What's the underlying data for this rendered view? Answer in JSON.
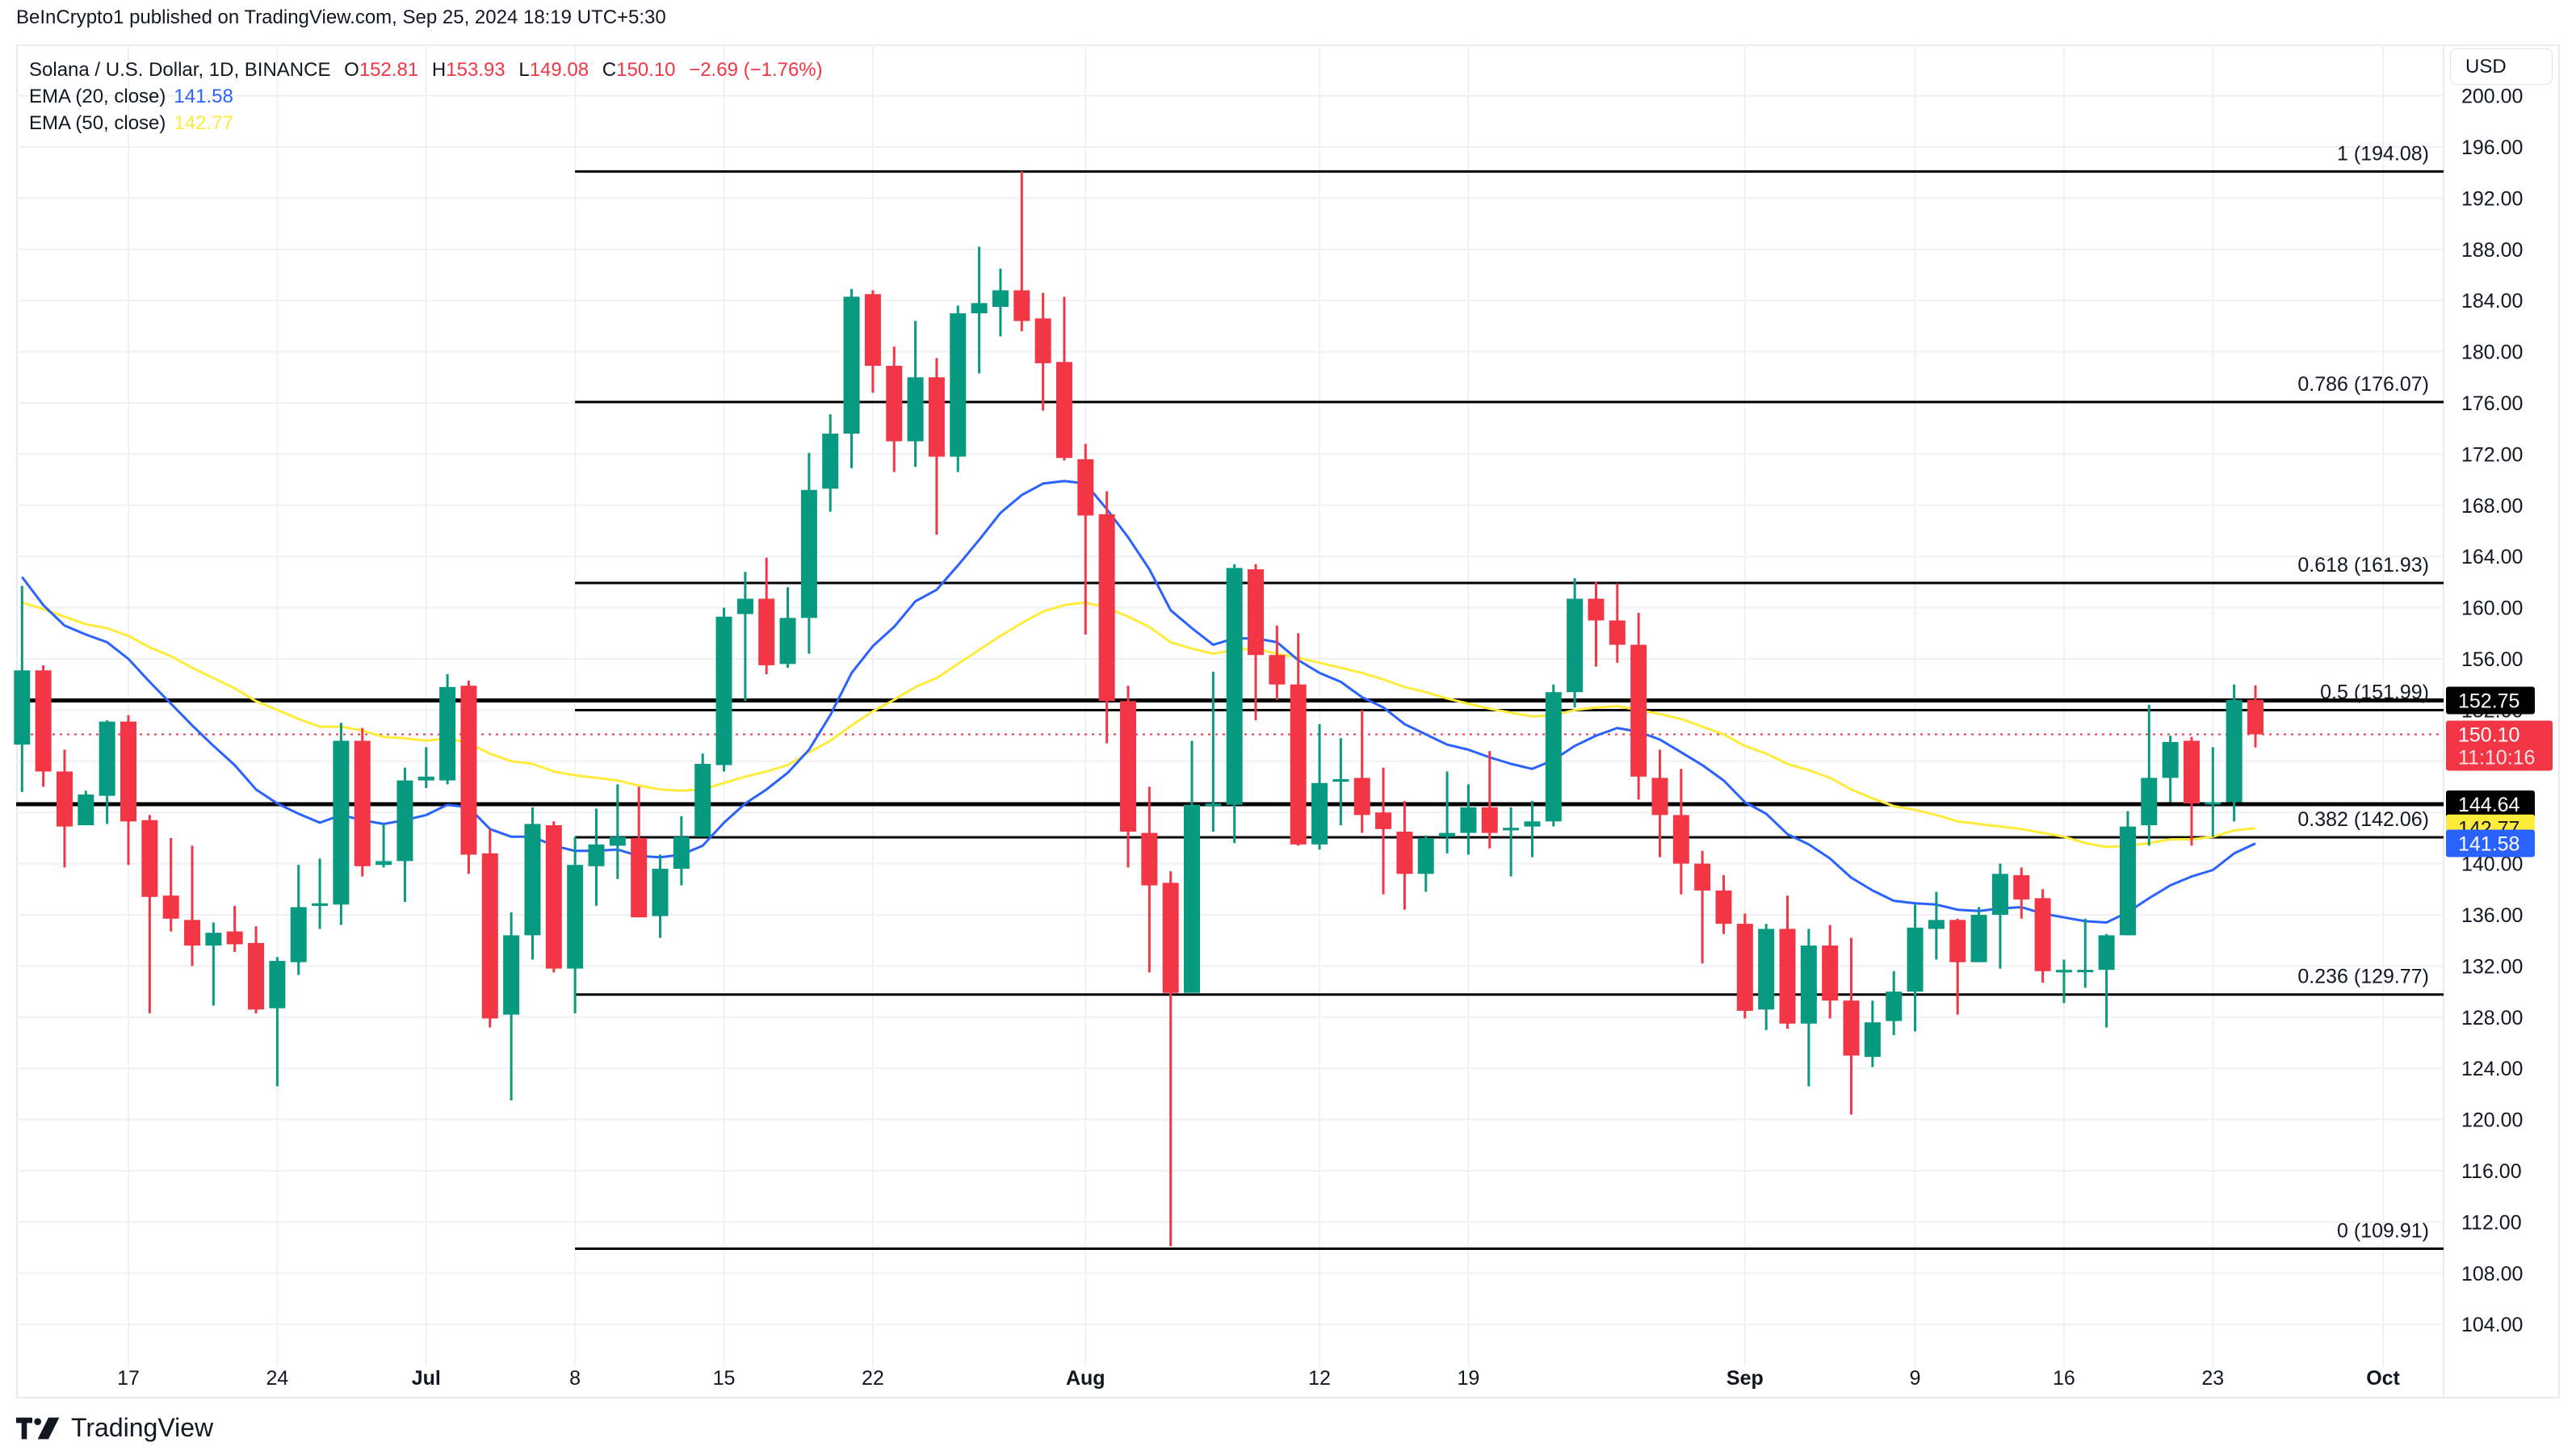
{
  "header": {
    "published": "BeInCrypto1 published on TradingView.com, Sep 25, 2024 18:19 UTC+5:30"
  },
  "legend": {
    "symbol": "Solana / U.S. Dollar, 1D, BINANCE",
    "open_label": "O",
    "open": "152.81",
    "high_label": "H",
    "high": "153.93",
    "low_label": "L",
    "low": "149.08",
    "close_label": "C",
    "close": "150.10",
    "change": "−2.69 (−1.76%)",
    "ema20_label": "EMA (20, close)",
    "ema20_value": "141.58",
    "ema50_label": "EMA (50, close)",
    "ema50_value": "142.77"
  },
  "axis": {
    "currency_button": "USD",
    "price_ticks": [
      "200.00",
      "196.00",
      "192.00",
      "188.00",
      "184.00",
      "180.00",
      "176.00",
      "172.00",
      "168.00",
      "164.00",
      "160.00",
      "156.00",
      "152.00",
      "148.00",
      "144.00",
      "140.00",
      "136.00",
      "132.00",
      "128.00",
      "124.00",
      "120.00",
      "116.00",
      "112.00",
      "108.00",
      "104.00"
    ],
    "price_tick_values": [
      200,
      196,
      192,
      188,
      184,
      180,
      176,
      172,
      168,
      164,
      160,
      156,
      152,
      148,
      144,
      140,
      136,
      132,
      128,
      124,
      120,
      116,
      112,
      108,
      104
    ],
    "time_ticks": [
      {
        "label": "17",
        "day": 0,
        "bold": false
      },
      {
        "label": "24",
        "day": 7,
        "bold": false
      },
      {
        "label": "Jul",
        "day": 14,
        "bold": true
      },
      {
        "label": "8",
        "day": 21,
        "bold": false
      },
      {
        "label": "15",
        "day": 28,
        "bold": false
      },
      {
        "label": "22",
        "day": 35,
        "bold": false
      },
      {
        "label": "Aug",
        "day": 45,
        "bold": true
      },
      {
        "label": "12",
        "day": 56,
        "bold": false
      },
      {
        "label": "19",
        "day": 63,
        "bold": false
      },
      {
        "label": "Sep",
        "day": 76,
        "bold": true
      },
      {
        "label": "9",
        "day": 84,
        "bold": false
      },
      {
        "label": "16",
        "day": 91,
        "bold": false
      },
      {
        "label": "23",
        "day": 98,
        "bold": false
      },
      {
        "label": "Oct",
        "day": 106,
        "bold": true
      }
    ],
    "price_badges": [
      {
        "value": "152.75",
        "price": 152.75,
        "bg": "#000000",
        "fg": "#ffffff"
      },
      {
        "value": "150.10",
        "sub": "11:10:16",
        "price": 150.1,
        "bg": "#F23645",
        "fg": "#ffffff"
      },
      {
        "value": "144.64",
        "price": 144.64,
        "bg": "#000000",
        "fg": "#ffffff"
      },
      {
        "value": "142.77",
        "price": 142.77,
        "bg": "#FFEB3B",
        "fg": "#131722"
      },
      {
        "value": "141.58",
        "price": 141.58,
        "bg": "#2962FF",
        "fg": "#ffffff"
      }
    ]
  },
  "colors": {
    "up": "#089981",
    "down": "#F23645",
    "ema20": "#2962FF",
    "ema50": "#FFEB3B",
    "grid": "#f0f1f4",
    "fib_line": "#000000",
    "last_price_line": "#F23645"
  },
  "horizontal_lines": [
    {
      "name": "resistance-line",
      "price": 152.75,
      "width": 5
    },
    {
      "name": "support-line",
      "price": 144.64,
      "width": 5
    }
  ],
  "fib_levels": [
    {
      "label": "1 (194.08)",
      "ratio": 1,
      "price": 194.08
    },
    {
      "label": "0.786 (176.07)",
      "ratio": 0.786,
      "price": 176.07
    },
    {
      "label": "0.618 (161.93)",
      "ratio": 0.618,
      "price": 161.93
    },
    {
      "label": "0.5 (151.99)",
      "ratio": 0.5,
      "price": 151.99
    },
    {
      "label": "0.382 (142.06)",
      "ratio": 0.382,
      "price": 142.06
    },
    {
      "label": "0.236 (129.77)",
      "ratio": 0.236,
      "price": 129.77
    },
    {
      "label": "0 (109.91)",
      "ratio": 0,
      "price": 109.91
    }
  ],
  "fib_start_day": 21,
  "footer": {
    "brand": "TradingView"
  },
  "chart_data": {
    "type": "candlestick",
    "title": "Solana / U.S. Dollar, 1D, BINANCE",
    "xlabel": "",
    "ylabel": "USD",
    "ylim": [
      102,
      204
    ],
    "grid": true,
    "first_day_offset": -5,
    "dates": [
      "Jun 12",
      "Jun 13",
      "Jun 14",
      "Jun 15",
      "Jun 16",
      "Jun 17",
      "Jun 18",
      "Jun 19",
      "Jun 20",
      "Jun 21",
      "Jun 22",
      "Jun 23",
      "Jun 24",
      "Jun 25",
      "Jun 26",
      "Jun 27",
      "Jun 28",
      "Jun 29",
      "Jun 30",
      "Jul 1",
      "Jul 2",
      "Jul 3",
      "Jul 4",
      "Jul 5",
      "Jul 6",
      "Jul 7",
      "Jul 8",
      "Jul 9",
      "Jul 10",
      "Jul 11",
      "Jul 12",
      "Jul 13",
      "Jul 14",
      "Jul 15",
      "Jul 16",
      "Jul 17",
      "Jul 18",
      "Jul 19",
      "Jul 20",
      "Jul 21",
      "Jul 22",
      "Jul 23",
      "Jul 24",
      "Jul 25",
      "Jul 26",
      "Jul 27",
      "Jul 28",
      "Jul 29",
      "Jul 30",
      "Jul 31",
      "Aug 1",
      "Aug 2",
      "Aug 3",
      "Aug 4",
      "Aug 5",
      "Aug 6",
      "Aug 7",
      "Aug 8",
      "Aug 9",
      "Aug 10",
      "Aug 11",
      "Aug 12",
      "Aug 13",
      "Aug 14",
      "Aug 15",
      "Aug 16",
      "Aug 17",
      "Aug 18",
      "Aug 19",
      "Aug 20",
      "Aug 21",
      "Aug 22",
      "Aug 23",
      "Aug 24",
      "Aug 25",
      "Aug 26",
      "Aug 27",
      "Aug 28",
      "Aug 29",
      "Aug 30",
      "Aug 31",
      "Sep 1",
      "Sep 2",
      "Sep 3",
      "Sep 4",
      "Sep 5",
      "Sep 6",
      "Sep 7",
      "Sep 8",
      "Sep 9",
      "Sep 10",
      "Sep 11",
      "Sep 12",
      "Sep 13",
      "Sep 14",
      "Sep 15",
      "Sep 16",
      "Sep 17",
      "Sep 18",
      "Sep 19",
      "Sep 20",
      "Sep 21",
      "Sep 22",
      "Sep 23",
      "Sep 24",
      "Sep 25"
    ],
    "ohlc": [
      [
        149.3,
        161.7,
        145.6,
        155.1
      ],
      [
        155.1,
        155.5,
        146.0,
        147.2
      ],
      [
        147.2,
        148.9,
        139.7,
        142.9
      ],
      [
        143.0,
        145.7,
        143.0,
        145.4
      ],
      [
        145.3,
        151.2,
        143.1,
        151.1
      ],
      [
        151.1,
        151.6,
        139.9,
        143.3
      ],
      [
        143.4,
        143.8,
        128.3,
        137.4
      ],
      [
        137.5,
        142.0,
        134.7,
        135.7
      ],
      [
        135.6,
        141.4,
        132.0,
        133.6
      ],
      [
        133.6,
        135.4,
        128.9,
        134.6
      ],
      [
        134.7,
        136.7,
        133.1,
        133.7
      ],
      [
        133.8,
        135.1,
        128.3,
        128.6
      ],
      [
        128.7,
        132.7,
        122.6,
        132.4
      ],
      [
        132.3,
        139.9,
        131.3,
        136.6
      ],
      [
        136.7,
        140.4,
        134.9,
        136.9
      ],
      [
        136.8,
        151.0,
        135.2,
        149.6
      ],
      [
        149.6,
        150.6,
        139.0,
        139.8
      ],
      [
        139.9,
        143.1,
        139.7,
        140.2
      ],
      [
        140.2,
        147.5,
        137.0,
        146.5
      ],
      [
        146.5,
        149.1,
        145.9,
        146.8
      ],
      [
        146.5,
        154.8,
        146.2,
        153.8
      ],
      [
        153.9,
        154.3,
        139.2,
        140.7
      ],
      [
        140.8,
        142.7,
        127.2,
        127.9
      ],
      [
        128.2,
        136.2,
        121.5,
        134.4
      ],
      [
        134.4,
        144.4,
        132.5,
        143.1
      ],
      [
        143.0,
        143.3,
        131.5,
        131.8
      ],
      [
        131.8,
        142.1,
        128.3,
        139.9
      ],
      [
        139.8,
        144.3,
        136.7,
        141.5
      ],
      [
        141.4,
        146.2,
        138.8,
        142.1
      ],
      [
        142.0,
        146.0,
        135.8,
        135.8
      ],
      [
        135.9,
        140.7,
        134.2,
        139.6
      ],
      [
        139.6,
        143.7,
        138.3,
        142.1
      ],
      [
        142.1,
        148.6,
        142.1,
        147.8
      ],
      [
        147.7,
        160.0,
        147.2,
        159.3
      ],
      [
        159.5,
        162.8,
        152.7,
        160.7
      ],
      [
        160.7,
        163.9,
        154.8,
        155.5
      ],
      [
        155.6,
        161.6,
        155.3,
        159.2
      ],
      [
        159.2,
        172.1,
        156.4,
        169.2
      ],
      [
        169.3,
        175.1,
        167.5,
        173.6
      ],
      [
        173.6,
        184.9,
        170.9,
        184.3
      ],
      [
        184.5,
        184.8,
        176.8,
        178.9
      ],
      [
        178.9,
        180.4,
        170.6,
        173.0
      ],
      [
        173.0,
        182.4,
        171.0,
        178.0
      ],
      [
        178.0,
        179.5,
        165.7,
        171.8
      ],
      [
        171.8,
        183.6,
        170.6,
        183.0
      ],
      [
        183.0,
        188.2,
        178.3,
        183.8
      ],
      [
        183.5,
        186.5,
        181.2,
        184.8
      ],
      [
        184.8,
        194.1,
        181.6,
        182.4
      ],
      [
        182.6,
        184.6,
        175.4,
        179.1
      ],
      [
        179.2,
        184.3,
        171.5,
        171.7
      ],
      [
        171.6,
        172.8,
        157.9,
        167.2
      ],
      [
        167.3,
        169.1,
        149.4,
        152.7
      ],
      [
        152.7,
        153.9,
        139.7,
        142.5
      ],
      [
        142.4,
        146.0,
        131.5,
        138.3
      ],
      [
        138.5,
        139.4,
        110.1,
        129.9
      ],
      [
        129.9,
        149.6,
        129.9,
        144.6
      ],
      [
        144.6,
        155.0,
        142.5,
        144.7
      ],
      [
        144.6,
        163.4,
        141.6,
        163.1
      ],
      [
        163.0,
        163.4,
        151.2,
        156.3
      ],
      [
        156.3,
        158.6,
        152.8,
        154.0
      ],
      [
        154.0,
        158.0,
        141.4,
        141.5
      ],
      [
        141.5,
        150.9,
        141.1,
        146.3
      ],
      [
        146.4,
        149.8,
        143.0,
        146.6
      ],
      [
        146.7,
        152.0,
        142.4,
        143.8
      ],
      [
        144.0,
        147.5,
        137.6,
        142.7
      ],
      [
        142.5,
        144.9,
        136.4,
        139.2
      ],
      [
        139.2,
        142.2,
        137.8,
        142.0
      ],
      [
        142.1,
        147.2,
        140.8,
        142.4
      ],
      [
        142.4,
        146.2,
        140.7,
        144.4
      ],
      [
        144.4,
        148.8,
        141.2,
        142.4
      ],
      [
        142.6,
        144.4,
        139.0,
        142.8
      ],
      [
        142.9,
        144.9,
        140.5,
        143.3
      ],
      [
        143.3,
        154.0,
        142.9,
        153.4
      ],
      [
        153.4,
        162.3,
        152.2,
        160.7
      ],
      [
        160.7,
        162.0,
        155.4,
        159.0
      ],
      [
        159.0,
        161.9,
        155.7,
        157.1
      ],
      [
        157.1,
        159.6,
        145.0,
        146.8
      ],
      [
        146.7,
        148.9,
        140.5,
        143.8
      ],
      [
        143.8,
        147.4,
        137.6,
        140.0
      ],
      [
        140.0,
        141.0,
        132.2,
        137.9
      ],
      [
        137.9,
        139.1,
        134.5,
        135.3
      ],
      [
        135.3,
        136.1,
        127.9,
        128.5
      ],
      [
        128.6,
        135.3,
        127.0,
        134.9
      ],
      [
        134.9,
        137.5,
        127.1,
        127.5
      ],
      [
        127.5,
        134.9,
        122.6,
        133.6
      ],
      [
        133.6,
        135.2,
        127.9,
        129.3
      ],
      [
        129.3,
        134.2,
        120.4,
        125.0
      ],
      [
        124.9,
        129.3,
        124.1,
        127.6
      ],
      [
        127.7,
        131.6,
        126.6,
        130.0
      ],
      [
        130.0,
        136.8,
        126.9,
        135.0
      ],
      [
        134.9,
        137.8,
        132.5,
        135.6
      ],
      [
        135.6,
        135.7,
        128.2,
        132.3
      ],
      [
        132.3,
        136.6,
        132.3,
        136.0
      ],
      [
        136.0,
        140.0,
        131.8,
        139.2
      ],
      [
        139.1,
        139.7,
        135.7,
        137.2
      ],
      [
        137.3,
        138.0,
        130.7,
        131.6
      ],
      [
        131.5,
        132.5,
        129.1,
        131.7
      ],
      [
        131.6,
        135.7,
        130.3,
        131.7
      ],
      [
        131.7,
        134.5,
        127.2,
        134.4
      ],
      [
        134.4,
        144.1,
        134.4,
        142.9
      ],
      [
        143.0,
        152.4,
        141.4,
        146.7
      ],
      [
        146.7,
        150.0,
        144.8,
        149.5
      ],
      [
        149.6,
        149.9,
        141.4,
        144.7
      ],
      [
        144.7,
        149.1,
        142.1,
        144.8
      ],
      [
        144.8,
        154.0,
        143.3,
        152.8
      ],
      [
        152.81,
        153.93,
        149.08,
        150.1
      ]
    ],
    "series": [
      {
        "name": "EMA (20, close)",
        "color": "#2962FF",
        "values": [
          162.4,
          160.2,
          158.6,
          157.9,
          157.3,
          156.0,
          154.2,
          152.5,
          150.8,
          149.2,
          147.7,
          145.8,
          144.7,
          143.9,
          143.2,
          143.8,
          143.4,
          143.1,
          143.4,
          143.8,
          144.6,
          144.4,
          142.7,
          142.1,
          142.1,
          141.4,
          141.0,
          141.0,
          141.1,
          140.6,
          140.5,
          140.7,
          141.4,
          143.2,
          144.7,
          145.8,
          147.1,
          148.9,
          151.6,
          154.9,
          157.0,
          158.5,
          160.5,
          161.4,
          163.3,
          165.3,
          167.4,
          168.8,
          169.7,
          169.9,
          169.7,
          167.7,
          165.5,
          163.0,
          159.8,
          158.4,
          157.1,
          157.6,
          157.6,
          157.3,
          155.9,
          154.9,
          154.2,
          153.0,
          152.2,
          150.9,
          150.1,
          149.3,
          148.9,
          148.3,
          147.8,
          147.4,
          148.1,
          149.2,
          150.0,
          150.6,
          150.3,
          149.7,
          148.7,
          147.7,
          146.5,
          144.8,
          143.9,
          142.3,
          141.5,
          140.4,
          138.9,
          137.9,
          137.1,
          136.9,
          136.8,
          136.4,
          136.3,
          136.5,
          136.6,
          136.1,
          135.8,
          135.5,
          135.4,
          136.2,
          137.3,
          138.3,
          139.0,
          139.5,
          140.8,
          141.58
        ]
      },
      {
        "name": "EMA (50, close)",
        "color": "#FFEB3B",
        "values": [
          160.4,
          159.9,
          159.3,
          158.7,
          158.4,
          157.8,
          156.9,
          156.2,
          155.3,
          154.5,
          153.7,
          152.7,
          152.0,
          151.3,
          150.7,
          150.7,
          150.4,
          149.9,
          149.8,
          149.6,
          149.8,
          149.4,
          148.6,
          148.0,
          147.8,
          147.2,
          146.9,
          146.7,
          146.5,
          146.1,
          145.8,
          145.7,
          145.8,
          146.3,
          146.8,
          147.2,
          147.7,
          148.7,
          149.6,
          150.8,
          151.9,
          152.8,
          153.8,
          154.5,
          155.6,
          156.7,
          157.8,
          158.8,
          159.7,
          160.2,
          160.4,
          160.0,
          159.3,
          158.5,
          157.3,
          156.8,
          156.4,
          156.7,
          156.8,
          156.4,
          156.1,
          155.7,
          155.3,
          154.9,
          154.4,
          153.8,
          153.4,
          152.9,
          152.5,
          152.1,
          151.8,
          151.5,
          151.6,
          152.0,
          152.2,
          152.3,
          152.0,
          151.7,
          151.3,
          150.7,
          150.1,
          149.2,
          148.6,
          147.8,
          147.3,
          146.7,
          145.8,
          145.1,
          144.5,
          144.2,
          143.8,
          143.3,
          143.1,
          142.9,
          142.7,
          142.4,
          142.1,
          141.6,
          141.3,
          141.4,
          141.6,
          141.9,
          141.9,
          142.1,
          142.6,
          142.77
        ]
      }
    ],
    "last_price": 150.1,
    "annotations": [
      "Fibonacci retracement from 109.91 (0) to 194.08 (1)",
      "Horizontal levels at 152.75 and 144.64"
    ]
  }
}
